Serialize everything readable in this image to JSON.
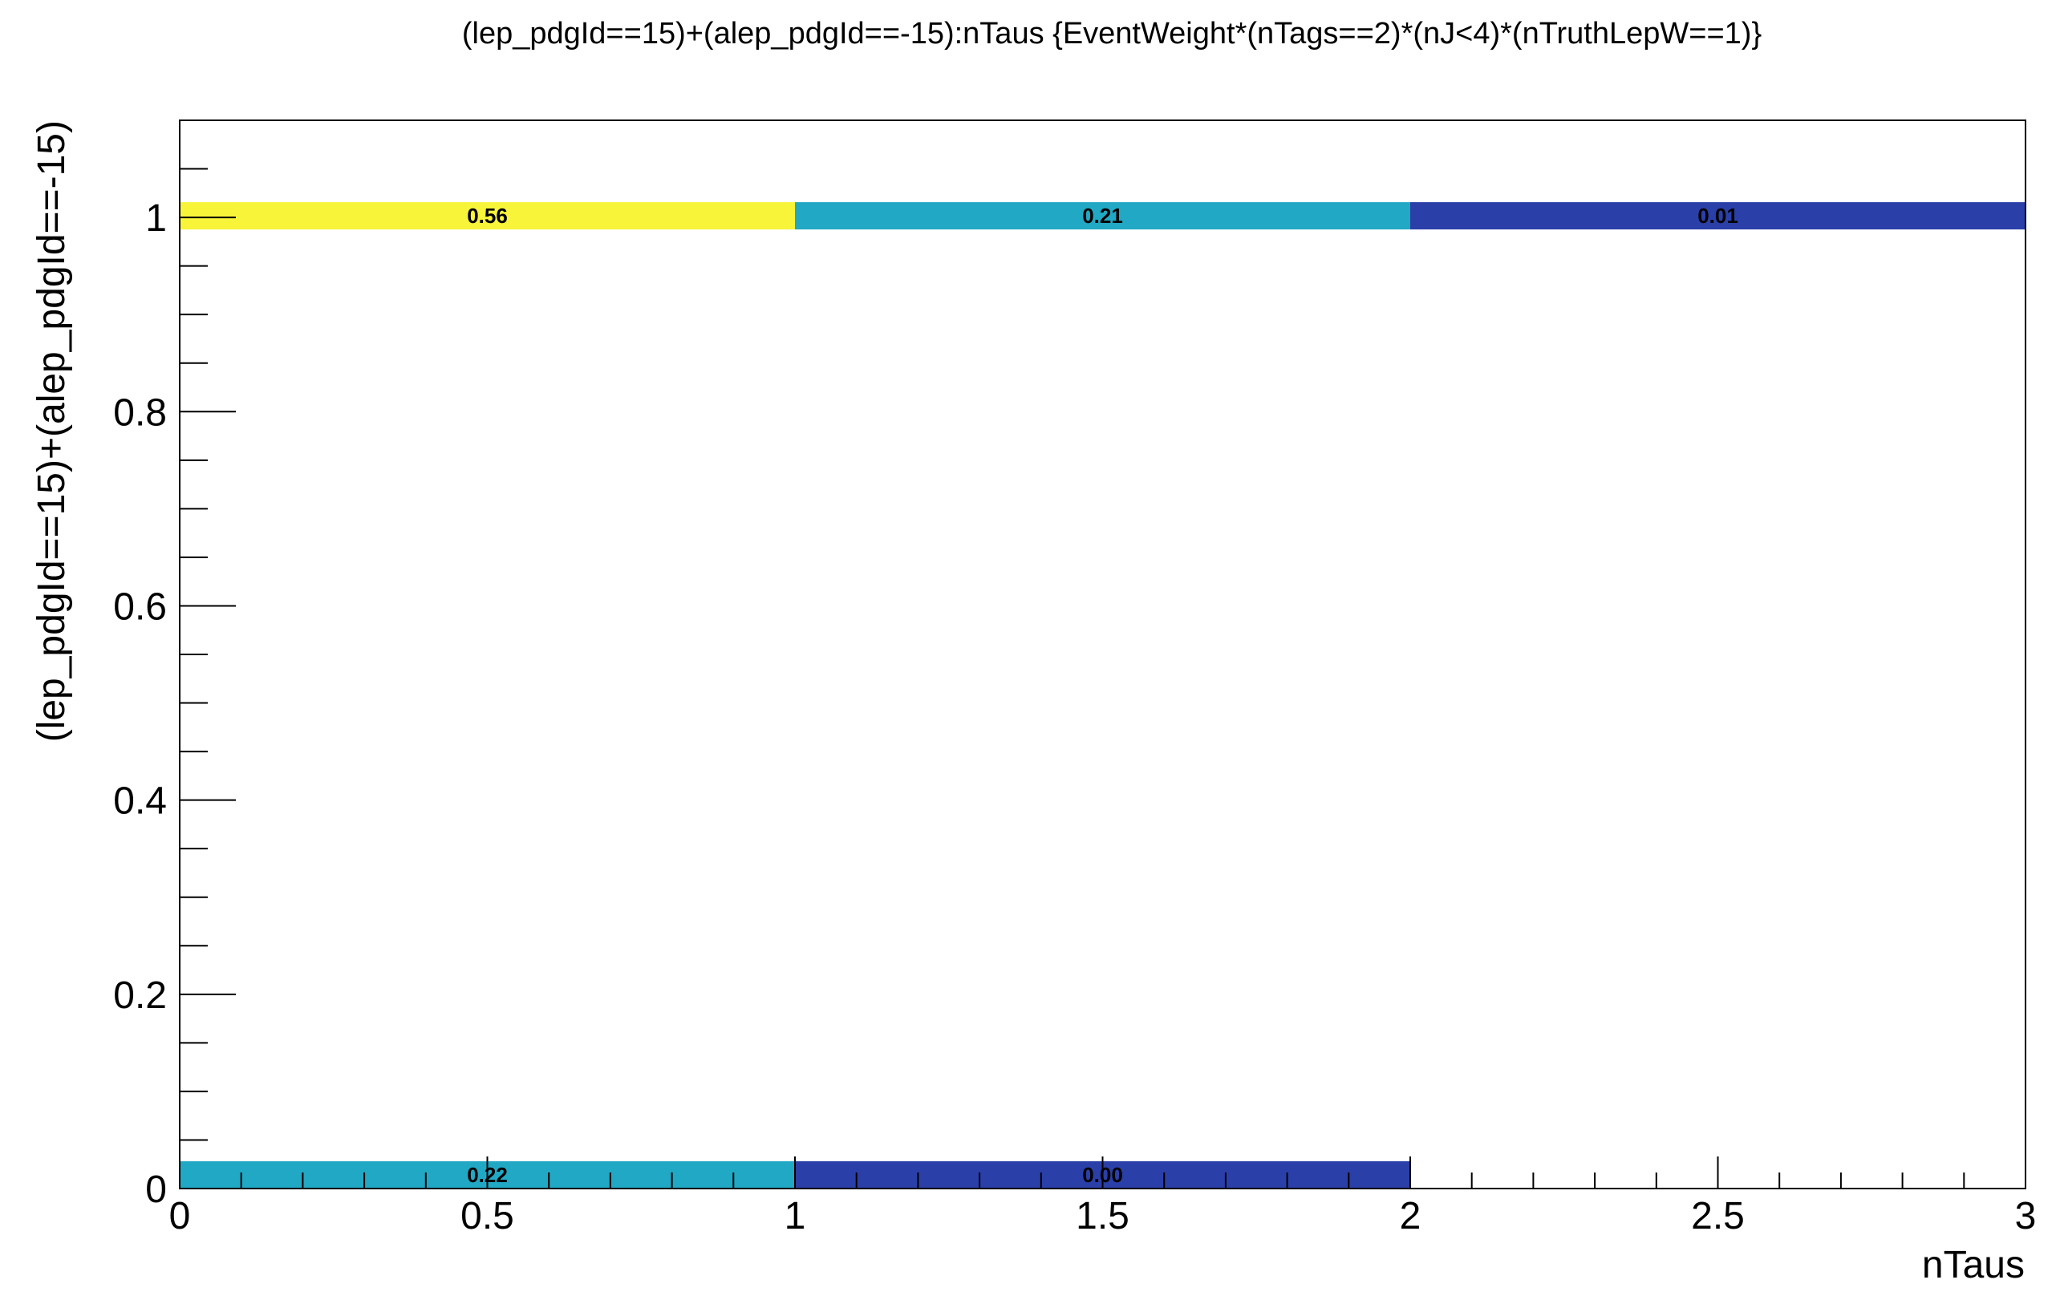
{
  "chart_data": {
    "type": "heatmap",
    "title": "(lep_pdgId==15)+(alep_pdgId==-15):nTaus {EventWeight*(nTags==2)*(nJ<4)*(nTruthLepW==1)}",
    "xlabel": "nTaus",
    "ylabel": "(lep_pdgId==15)+(alep_pdgId==-15)",
    "xlim": [
      0,
      3
    ],
    "ylim": [
      0,
      1.1
    ],
    "x_ticks": [
      "0",
      "0.5",
      "1",
      "1.5",
      "2",
      "2.5",
      "3"
    ],
    "y_ticks": [
      "0",
      "0.2",
      "0.4",
      "0.6",
      "0.8",
      "1"
    ],
    "grid": false,
    "cells": [
      {
        "x0": 0,
        "x1": 1,
        "y": 1,
        "value": 0.56,
        "label": "0.56",
        "color": "#f8f43a"
      },
      {
        "x0": 1,
        "x1": 2,
        "y": 1,
        "value": 0.21,
        "label": "0.21",
        "color": "#21a8c4"
      },
      {
        "x0": 2,
        "x1": 3,
        "y": 1,
        "value": 0.01,
        "label": "0.01",
        "color": "#2a3fa8"
      },
      {
        "x0": 0,
        "x1": 1,
        "y": 0,
        "value": 0.22,
        "label": "0.22",
        "color": "#21a8c4"
      },
      {
        "x0": 1,
        "x1": 2,
        "y": 0,
        "value": 0.0,
        "label": "0.00",
        "color": "#2a3fa8"
      }
    ]
  }
}
